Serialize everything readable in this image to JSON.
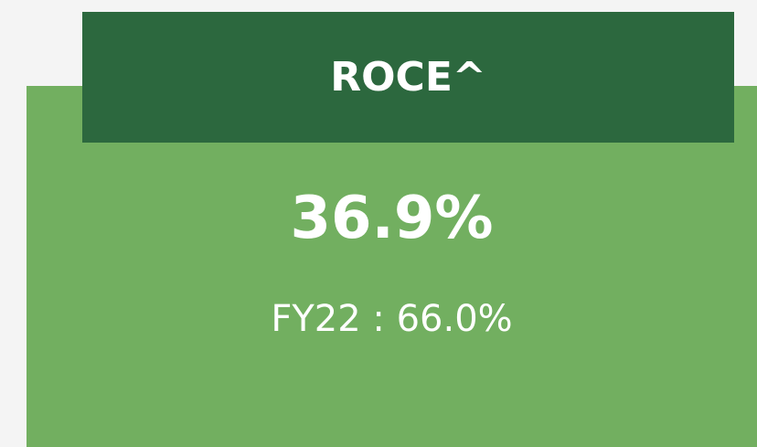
{
  "card": {
    "title": "ROCE^",
    "value": "36.9%",
    "comparison": "FY22 : 66.0%"
  }
}
